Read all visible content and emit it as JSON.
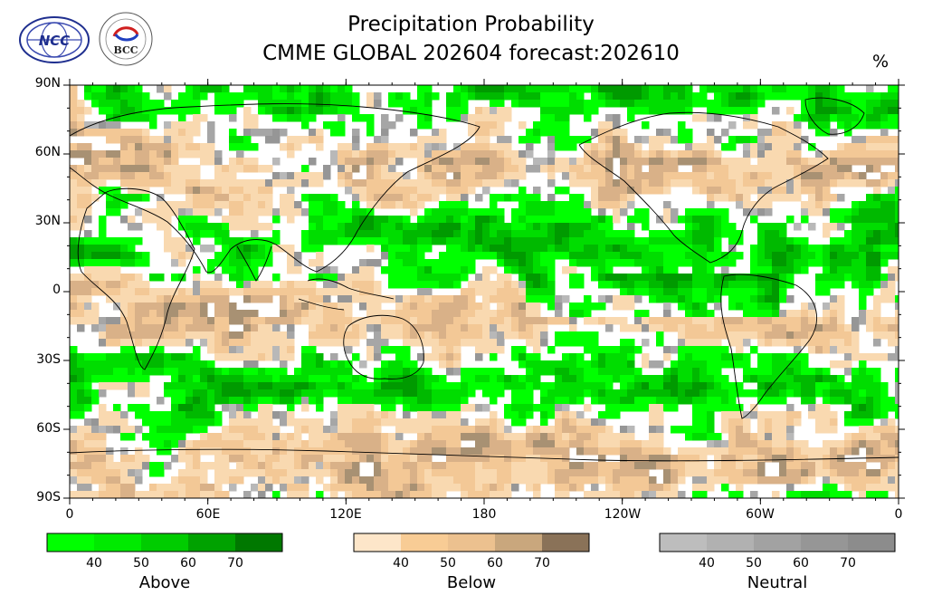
{
  "title": {
    "line1": "Precipitation Probability",
    "line2": "CMME GLOBAL 202604 forecast:202610"
  },
  "unit_label": "%",
  "logos": [
    {
      "name": "ncc-logo",
      "text": "NCC"
    },
    {
      "name": "bcc-logo",
      "text": "BCC"
    }
  ],
  "axes": {
    "lat_labels": [
      "90N",
      "60N",
      "30N",
      "0",
      "30S",
      "60S",
      "90S"
    ],
    "lon_labels": [
      "0",
      "60E",
      "120E",
      "180",
      "120W",
      "60W",
      "0"
    ]
  },
  "legends": [
    {
      "title": "Above",
      "ticks": [
        "40",
        "50",
        "60",
        "70"
      ],
      "colors": [
        "#00ff00",
        "#00ea00",
        "#00cc00",
        "#00a200",
        "#007800"
      ]
    },
    {
      "title": "Below",
      "ticks": [
        "40",
        "50",
        "60",
        "70"
      ],
      "colors": [
        "#fde6c9",
        "#f8cc95",
        "#ecc18f",
        "#c9a77d",
        "#8a7258"
      ]
    },
    {
      "title": "Neutral",
      "ticks": [
        "40",
        "50",
        "60",
        "70"
      ],
      "colors": [
        "#bdbdbd",
        "#b1b1b1",
        "#a2a2a2",
        "#969696",
        "#8c8c8c"
      ]
    }
  ],
  "map_colors": {
    "above": [
      "#00ff00",
      "#00dd00",
      "#00b900",
      "#009a00"
    ],
    "below": [
      "#f9d9b0",
      "#f3c896",
      "#d9b188",
      "#a89173"
    ],
    "neutral": [
      "#b8b8b8",
      "#a6a6a6",
      "#969696"
    ],
    "none": "#ffffff"
  }
}
